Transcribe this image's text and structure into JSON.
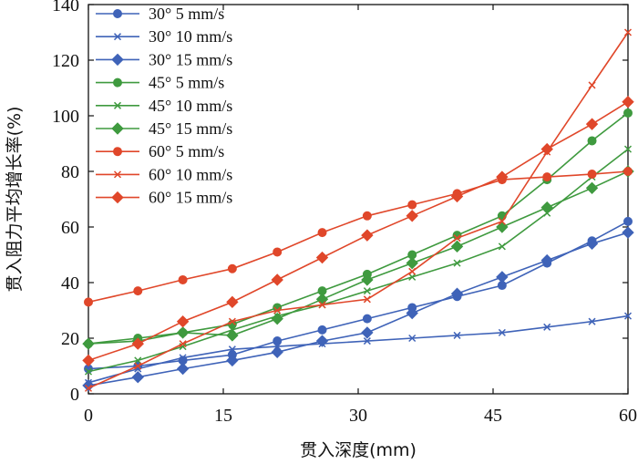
{
  "chart_data": {
    "type": "line",
    "xlabel": "贯入深度(mm)",
    "ylabel": "贯入阻力平均增长率(%)",
    "xlim": [
      0,
      60
    ],
    "ylim": [
      0,
      140
    ],
    "xticks": [
      0,
      15,
      30,
      45,
      60
    ],
    "yticks": [
      0,
      20,
      40,
      60,
      80,
      100,
      120,
      140
    ],
    "xtick_labels": [
      "0",
      "15",
      "30",
      "45",
      "60"
    ],
    "ytick_labels": [
      "0",
      "20",
      "40",
      "60",
      "80",
      "100",
      "120",
      "140"
    ],
    "legend_position": "top-left",
    "x": [
      0,
      5.5,
      10.5,
      16,
      21,
      26,
      31,
      36,
      41,
      46,
      51,
      56,
      60
    ],
    "series": [
      {
        "name": "30° 5 mm/s",
        "marker": "circle",
        "color": "#3f63b8",
        "values": [
          9,
          10,
          12,
          14,
          19,
          23,
          27,
          31,
          35,
          39,
          47,
          55,
          62
        ]
      },
      {
        "name": "30° 10 mm/s",
        "marker": "x",
        "color": "#3f63b8",
        "values": [
          4,
          9,
          13,
          16,
          17,
          18,
          19,
          20,
          21,
          22,
          24,
          26,
          28
        ]
      },
      {
        "name": "30° 15 mm/s",
        "marker": "diamond",
        "color": "#3f63b8",
        "values": [
          3,
          6,
          9,
          12,
          15,
          19,
          22,
          29,
          36,
          42,
          48,
          54,
          58
        ]
      },
      {
        "name": "45° 5 mm/s",
        "marker": "circle",
        "color": "#3f9a3f",
        "values": [
          18,
          20,
          22,
          25,
          31,
          37,
          43,
          50,
          57,
          64,
          77,
          91,
          101
        ]
      },
      {
        "name": "45° 10 mm/s",
        "marker": "x",
        "color": "#3f9a3f",
        "values": [
          8,
          12,
          17,
          23,
          28,
          32,
          37,
          42,
          47,
          53,
          65,
          78,
          88
        ]
      },
      {
        "name": "45° 15 mm/s",
        "marker": "diamond",
        "color": "#3f9a3f",
        "values": [
          18,
          19,
          22,
          21,
          27,
          34,
          41,
          47,
          53,
          60,
          67,
          74,
          80
        ]
      },
      {
        "name": "60° 5 mm/s",
        "marker": "circle",
        "color": "#e0472a",
        "values": [
          33,
          37,
          41,
          45,
          51,
          58,
          64,
          68,
          72,
          77,
          78,
          79,
          80
        ]
      },
      {
        "name": "60° 10 mm/s",
        "marker": "x",
        "color": "#e0472a",
        "values": [
          2,
          10,
          18,
          26,
          30,
          32,
          34,
          44,
          56,
          62,
          87,
          111,
          130
        ]
      },
      {
        "name": "60° 15 mm/s",
        "marker": "diamond",
        "color": "#e0472a",
        "values": [
          12,
          18,
          26,
          33,
          41,
          49,
          57,
          64,
          71,
          78,
          88,
          97,
          105
        ]
      }
    ]
  }
}
